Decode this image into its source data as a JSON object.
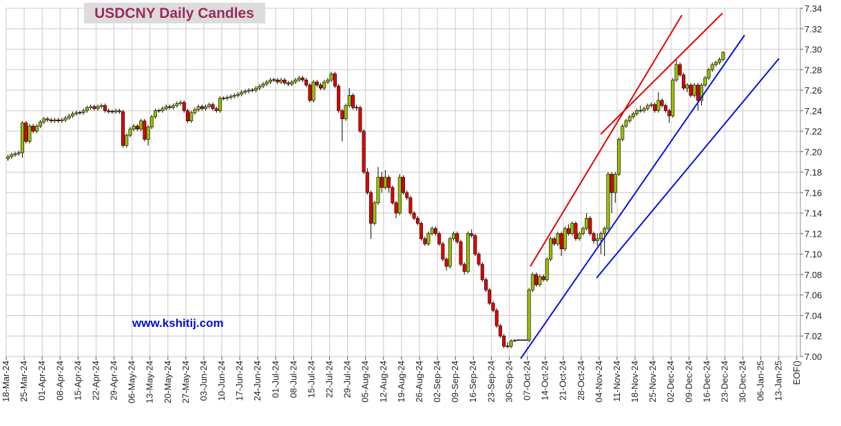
{
  "chart_data": {
    "type": "candlestick",
    "title": "USDCNY Daily Candles",
    "watermark": "www.kshitij.com",
    "up_color": "#99c000",
    "down_color": "#e00000",
    "grid": true,
    "ylim": [
      7,
      7.34
    ],
    "yticks": [
      {
        "value": 7,
        "label": "7.00"
      },
      7.02,
      7.04,
      7.06,
      7.08,
      {
        "value": 7.1,
        "label": "7.10"
      },
      7.12,
      7.14,
      7.16,
      7.18,
      {
        "value": 7.2,
        "label": "7.20"
      },
      7.22,
      7.24,
      7.26,
      7.28,
      {
        "value": 7.3,
        "label": "7.30"
      },
      7.32,
      7.34
    ],
    "categories": [
      "18-Mar-24",
      null,
      null,
      null,
      null,
      "25-Mar-24",
      null,
      null,
      null,
      null,
      "01-Apr-24",
      null,
      null,
      null,
      null,
      "08-Apr-24",
      null,
      null,
      null,
      null,
      "15-Apr-24",
      null,
      null,
      null,
      null,
      "22-Apr-24",
      null,
      null,
      null,
      null,
      "29-Apr-24",
      null,
      null,
      null,
      null,
      "06-May-24",
      null,
      null,
      null,
      null,
      "13-May-24",
      null,
      null,
      null,
      null,
      "20-May-24",
      null,
      null,
      null,
      null,
      "27-May-24",
      null,
      null,
      null,
      null,
      "03-Jun-24",
      null,
      null,
      null,
      null,
      "10-Jun-24",
      null,
      null,
      null,
      null,
      "17-Jun-24",
      null,
      null,
      null,
      null,
      "24-Jun-24",
      null,
      null,
      null,
      null,
      "01-Jul-24",
      null,
      null,
      null,
      null,
      "08-Jul-24",
      null,
      null,
      null,
      null,
      "15-Jul-24",
      null,
      null,
      null,
      null,
      "22-Jul-24",
      null,
      null,
      null,
      null,
      "29-Jul-24",
      null,
      null,
      null,
      null,
      "05-Aug-24",
      null,
      null,
      null,
      null,
      "12-Aug-24",
      null,
      null,
      null,
      null,
      "19-Aug-24",
      null,
      null,
      null,
      null,
      "26-Aug-24",
      null,
      null,
      null,
      null,
      "02-Sep-24",
      null,
      null,
      null,
      null,
      "09-Sep-24",
      null,
      null,
      null,
      null,
      "16-Sep-24",
      null,
      null,
      null,
      null,
      "23-Sep-24",
      null,
      null,
      null,
      null,
      "30-Sep-24",
      null,
      null,
      null,
      null,
      "07-Oct-24",
      null,
      null,
      null,
      null,
      "14-Oct-24",
      null,
      null,
      null,
      null,
      "21-Oct-24",
      null,
      null,
      null,
      null,
      "28-Oct-24",
      null,
      null,
      null,
      null,
      "04-Nov-24",
      null,
      null,
      null,
      null,
      "11-Nov-24",
      null,
      null,
      null,
      null,
      "18-Nov-24",
      null,
      null,
      null,
      null,
      "25-Nov-24",
      null,
      null,
      null,
      null,
      "02-Dec-24",
      null,
      null,
      null,
      null,
      "09-Dec-24",
      null,
      null,
      null,
      null,
      "16-Dec-24",
      null,
      null,
      null,
      null,
      "23-Dec-24",
      null,
      null,
      null,
      null,
      "30-Dec-24",
      null,
      null,
      null,
      null,
      "06-Jan-25",
      null,
      null,
      null,
      null,
      "13-Jan-25",
      null,
      null,
      null,
      null,
      "EOF()"
    ],
    "candles": [
      [
        7.193,
        7.197,
        7.191,
        7.195
      ],
      [
        7.195,
        7.199,
        7.193,
        7.197
      ],
      [
        7.197,
        7.2,
        7.195,
        7.198
      ],
      [
        7.198,
        7.201,
        7.196,
        7.199
      ],
      [
        7.199,
        7.23,
        7.194,
        7.228
      ],
      [
        7.228,
        7.23,
        7.208,
        7.21
      ],
      [
        7.21,
        7.227,
        7.208,
        7.225
      ],
      [
        7.225,
        7.227,
        7.218,
        7.22
      ],
      [
        7.22,
        7.227,
        7.218,
        7.225
      ],
      [
        7.225,
        7.231,
        7.223,
        7.229
      ],
      [
        7.229,
        7.234,
        7.227,
        7.232
      ],
      [
        7.232,
        7.234,
        7.229,
        7.231
      ],
      [
        7.231,
        7.233,
        7.228,
        7.23
      ],
      [
        7.23,
        7.233,
        7.228,
        7.231
      ],
      [
        7.231,
        7.233,
        7.228,
        7.23
      ],
      [
        7.23,
        7.233,
        7.228,
        7.231
      ],
      [
        7.231,
        7.235,
        7.229,
        7.233
      ],
      [
        7.233,
        7.237,
        7.231,
        7.235
      ],
      [
        7.235,
        7.239,
        7.233,
        7.237
      ],
      [
        7.237,
        7.24,
        7.235,
        7.238
      ],
      [
        7.238,
        7.24,
        7.236,
        7.238
      ],
      [
        7.238,
        7.242,
        7.236,
        7.24
      ],
      [
        7.24,
        7.245,
        7.238,
        7.243
      ],
      [
        7.243,
        7.246,
        7.241,
        7.244
      ],
      [
        7.244,
        7.246,
        7.24,
        7.242
      ],
      [
        7.242,
        7.246,
        7.24,
        7.244
      ],
      [
        7.244,
        7.247,
        7.242,
        7.245
      ],
      [
        7.245,
        7.247,
        7.238,
        7.24
      ],
      [
        7.24,
        7.242,
        7.237,
        7.239
      ],
      [
        7.239,
        7.241,
        7.237,
        7.239
      ],
      [
        7.239,
        7.242,
        7.237,
        7.24
      ],
      [
        7.24,
        7.242,
        7.237,
        7.239
      ],
      [
        7.239,
        7.241,
        7.204,
        7.206
      ],
      [
        7.206,
        7.218,
        7.204,
        7.216
      ],
      [
        7.216,
        7.224,
        7.214,
        7.222
      ],
      [
        7.222,
        7.227,
        7.22,
        7.225
      ],
      [
        7.225,
        7.227,
        7.22,
        7.222
      ],
      [
        7.222,
        7.232,
        7.22,
        7.23
      ],
      [
        7.23,
        7.232,
        7.21,
        7.212
      ],
      [
        7.212,
        7.226,
        7.206,
        7.224
      ],
      [
        7.224,
        7.236,
        7.222,
        7.234
      ],
      [
        7.234,
        7.242,
        7.232,
        7.24
      ],
      [
        7.24,
        7.242,
        7.238,
        7.24
      ],
      [
        7.24,
        7.244,
        7.238,
        7.242
      ],
      [
        7.242,
        7.246,
        7.24,
        7.244
      ],
      [
        7.244,
        7.246,
        7.241,
        7.243
      ],
      [
        7.243,
        7.247,
        7.241,
        7.245
      ],
      [
        7.245,
        7.249,
        7.243,
        7.247
      ],
      [
        7.247,
        7.25,
        7.245,
        7.248
      ],
      [
        7.248,
        7.25,
        7.238,
        7.24
      ],
      [
        7.24,
        7.242,
        7.228,
        7.23
      ],
      [
        7.23,
        7.24,
        7.228,
        7.238
      ],
      [
        7.238,
        7.243,
        7.236,
        7.241
      ],
      [
        7.241,
        7.246,
        7.239,
        7.244
      ],
      [
        7.244,
        7.246,
        7.24,
        7.242
      ],
      [
        7.242,
        7.246,
        7.24,
        7.244
      ],
      [
        7.244,
        7.248,
        7.242,
        7.246
      ],
      [
        7.246,
        7.248,
        7.24,
        7.242
      ],
      [
        7.242,
        7.244,
        7.238,
        7.24
      ],
      [
        7.24,
        7.254,
        7.238,
        7.252
      ],
      [
        7.252,
        7.254,
        7.25,
        7.252
      ],
      [
        7.252,
        7.255,
        7.25,
        7.253
      ],
      [
        7.253,
        7.256,
        7.251,
        7.254
      ],
      [
        7.254,
        7.257,
        7.252,
        7.255
      ],
      [
        7.255,
        7.258,
        7.253,
        7.256
      ],
      [
        7.256,
        7.26,
        7.254,
        7.258
      ],
      [
        7.258,
        7.261,
        7.256,
        7.259
      ],
      [
        7.259,
        7.262,
        7.257,
        7.26
      ],
      [
        7.26,
        7.262,
        7.258,
        7.26
      ],
      [
        7.26,
        7.264,
        7.258,
        7.262
      ],
      [
        7.262,
        7.266,
        7.26,
        7.264
      ],
      [
        7.264,
        7.268,
        7.262,
        7.266
      ],
      [
        7.266,
        7.27,
        7.264,
        7.268
      ],
      [
        7.268,
        7.272,
        7.266,
        7.27
      ],
      [
        7.27,
        7.272,
        7.268,
        7.27
      ],
      [
        7.27,
        7.272,
        7.266,
        7.268
      ],
      [
        7.268,
        7.272,
        7.266,
        7.27
      ],
      [
        7.27,
        7.272,
        7.265,
        7.267
      ],
      [
        7.267,
        7.269,
        7.264,
        7.266
      ],
      [
        7.266,
        7.27,
        7.264,
        7.268
      ],
      [
        7.268,
        7.272,
        7.266,
        7.27
      ],
      [
        7.27,
        7.274,
        7.268,
        7.272
      ],
      [
        7.272,
        7.274,
        7.268,
        7.27
      ],
      [
        7.27,
        7.272,
        7.263,
        7.265
      ],
      [
        7.265,
        7.267,
        7.248,
        7.25
      ],
      [
        7.25,
        7.27,
        7.248,
        7.268
      ],
      [
        7.268,
        7.27,
        7.263,
        7.265
      ],
      [
        7.265,
        7.267,
        7.26,
        7.262
      ],
      [
        7.262,
        7.27,
        7.26,
        7.268
      ],
      [
        7.268,
        7.272,
        7.266,
        7.27
      ],
      [
        7.27,
        7.278,
        7.268,
        7.276
      ],
      [
        7.276,
        7.278,
        7.262,
        7.264
      ],
      [
        7.264,
        7.266,
        7.238,
        7.24
      ],
      [
        7.24,
        7.242,
        7.21,
        7.232
      ],
      [
        7.232,
        7.247,
        7.23,
        7.245
      ],
      [
        7.245,
        7.262,
        7.243,
        7.255
      ],
      [
        7.255,
        7.257,
        7.241,
        7.243
      ],
      [
        7.243,
        7.246,
        7.24,
        7.243
      ],
      [
        7.243,
        7.245,
        7.218,
        7.22
      ],
      [
        7.22,
        7.222,
        7.178,
        7.18
      ],
      [
        7.18,
        7.184,
        7.158,
        7.16
      ],
      [
        7.16,
        7.162,
        7.115,
        7.13
      ],
      [
        7.13,
        7.152,
        7.128,
        7.15
      ],
      [
        7.15,
        7.185,
        7.148,
        7.175
      ],
      [
        7.175,
        7.18,
        7.16,
        7.165
      ],
      [
        7.165,
        7.182,
        7.163,
        7.175
      ],
      [
        7.175,
        7.177,
        7.16,
        7.165
      ],
      [
        7.165,
        7.167,
        7.148,
        7.15
      ],
      [
        7.15,
        7.152,
        7.135,
        7.14
      ],
      [
        7.14,
        7.178,
        7.138,
        7.175
      ],
      [
        7.175,
        7.177,
        7.158,
        7.16
      ],
      [
        7.16,
        7.162,
        7.153,
        7.155
      ],
      [
        7.155,
        7.157,
        7.138,
        7.14
      ],
      [
        7.14,
        7.142,
        7.133,
        7.135
      ],
      [
        7.135,
        7.137,
        7.128,
        7.13
      ],
      [
        7.13,
        7.132,
        7.113,
        7.115
      ],
      [
        7.115,
        7.117,
        7.108,
        7.11
      ],
      [
        7.11,
        7.122,
        7.108,
        7.12
      ],
      [
        7.12,
        7.127,
        7.118,
        7.125
      ],
      [
        7.125,
        7.127,
        7.118,
        7.12
      ],
      [
        7.12,
        7.122,
        7.108,
        7.11
      ],
      [
        7.11,
        7.112,
        7.093,
        7.095
      ],
      [
        7.095,
        7.097,
        7.084,
        7.088
      ],
      [
        7.088,
        7.117,
        7.086,
        7.115
      ],
      [
        7.115,
        7.122,
        7.113,
        7.12
      ],
      [
        7.12,
        7.122,
        7.11,
        7.112
      ],
      [
        7.112,
        7.114,
        7.088,
        7.09
      ],
      [
        7.09,
        7.092,
        7.08,
        7.083
      ],
      [
        7.083,
        7.122,
        7.081,
        7.12
      ],
      [
        7.12,
        7.124,
        7.116,
        7.118
      ],
      [
        7.118,
        7.12,
        7.098,
        7.1
      ],
      [
        7.1,
        7.102,
        7.088,
        7.09
      ],
      [
        7.09,
        7.092,
        7.073,
        7.075
      ],
      [
        7.075,
        7.077,
        7.063,
        7.065
      ],
      [
        7.065,
        7.067,
        7.05,
        7.052
      ],
      [
        7.052,
        7.054,
        7.043,
        7.045
      ],
      [
        7.045,
        7.047,
        7.028,
        7.03
      ],
      [
        7.03,
        7.032,
        7.018,
        7.02
      ],
      [
        7.02,
        7.022,
        7.008,
        7.01
      ],
      [
        7.01,
        7.014,
        7.008,
        7.01
      ],
      [
        7.01,
        7.017,
        7.008,
        7.015
      ],
      [
        7.015,
        7.017,
        7.014,
        7.016
      ],
      [
        7.016,
        7.016,
        7.016,
        7.016
      ],
      [
        7.016,
        7.016,
        7.016,
        7.016
      ],
      [
        7.016,
        7.016,
        7.016,
        7.016
      ],
      [
        7.016,
        7.067,
        7.014,
        7.065
      ],
      [
        7.065,
        7.082,
        7.063,
        7.08
      ],
      [
        7.08,
        7.082,
        7.068,
        7.07
      ],
      [
        7.07,
        7.08,
        7.068,
        7.078
      ],
      [
        7.078,
        7.08,
        7.073,
        7.075
      ],
      [
        7.075,
        7.097,
        7.073,
        7.095
      ],
      [
        7.095,
        7.117,
        7.093,
        7.115
      ],
      [
        7.115,
        7.117,
        7.108,
        7.11
      ],
      [
        7.11,
        7.122,
        7.108,
        7.12
      ],
      [
        7.12,
        7.122,
        7.098,
        7.105
      ],
      [
        7.105,
        7.127,
        7.103,
        7.125
      ],
      [
        7.125,
        7.129,
        7.118,
        7.12
      ],
      [
        7.12,
        7.132,
        7.118,
        7.13
      ],
      [
        7.13,
        7.132,
        7.113,
        7.115
      ],
      [
        7.115,
        7.122,
        7.113,
        7.12
      ],
      [
        7.12,
        7.127,
        7.118,
        7.125
      ],
      [
        7.125,
        7.14,
        7.123,
        7.135
      ],
      [
        7.135,
        7.137,
        7.118,
        7.12
      ],
      [
        7.12,
        7.122,
        7.11,
        7.113
      ],
      [
        7.113,
        7.12,
        7.108,
        7.115
      ],
      [
        7.115,
        7.122,
        7.1,
        7.12
      ],
      [
        7.12,
        7.127,
        7.098,
        7.125
      ],
      [
        7.125,
        7.18,
        7.123,
        7.178
      ],
      [
        7.178,
        7.18,
        7.14,
        7.16
      ],
      [
        7.16,
        7.18,
        7.15,
        7.178
      ],
      [
        7.178,
        7.214,
        7.176,
        7.212
      ],
      [
        7.212,
        7.227,
        7.21,
        7.225
      ],
      [
        7.225,
        7.232,
        7.223,
        7.23
      ],
      [
        7.23,
        7.236,
        7.228,
        7.234
      ],
      [
        7.234,
        7.239,
        7.232,
        7.237
      ],
      [
        7.237,
        7.242,
        7.235,
        7.24
      ],
      [
        7.24,
        7.245,
        7.238,
        7.24
      ],
      [
        7.24,
        7.244,
        7.238,
        7.242
      ],
      [
        7.242,
        7.247,
        7.24,
        7.245
      ],
      [
        7.245,
        7.248,
        7.243,
        7.246
      ],
      [
        7.246,
        7.248,
        7.238,
        7.24
      ],
      [
        7.24,
        7.258,
        7.238,
        7.25
      ],
      [
        7.25,
        7.252,
        7.243,
        7.245
      ],
      [
        7.245,
        7.247,
        7.238,
        7.24
      ],
      [
        7.24,
        7.242,
        7.228,
        7.235
      ],
      [
        7.235,
        7.272,
        7.233,
        7.27
      ],
      [
        7.27,
        7.29,
        7.268,
        7.285
      ],
      [
        7.285,
        7.287,
        7.273,
        7.275
      ],
      [
        7.275,
        7.277,
        7.26,
        7.262
      ],
      [
        7.262,
        7.267,
        7.258,
        7.265
      ],
      [
        7.265,
        7.267,
        7.253,
        7.255
      ],
      [
        7.255,
        7.267,
        7.253,
        7.265
      ],
      [
        7.265,
        7.267,
        7.24,
        7.25
      ],
      [
        7.25,
        7.267,
        7.245,
        7.265
      ],
      [
        7.265,
        7.274,
        7.263,
        7.272
      ],
      [
        7.272,
        7.282,
        7.27,
        7.28
      ],
      [
        7.28,
        7.287,
        7.278,
        7.285
      ],
      [
        7.285,
        7.289,
        7.283,
        7.287
      ],
      [
        7.287,
        7.292,
        7.285,
        7.29
      ],
      [
        7.29,
        7.298,
        7.288,
        7.297
      ],
      null,
      null,
      null,
      null,
      null,
      null,
      null,
      null,
      null,
      null,
      null,
      null,
      null,
      null,
      null,
      null,
      null,
      null,
      null,
      null,
      null
    ]
  }
}
